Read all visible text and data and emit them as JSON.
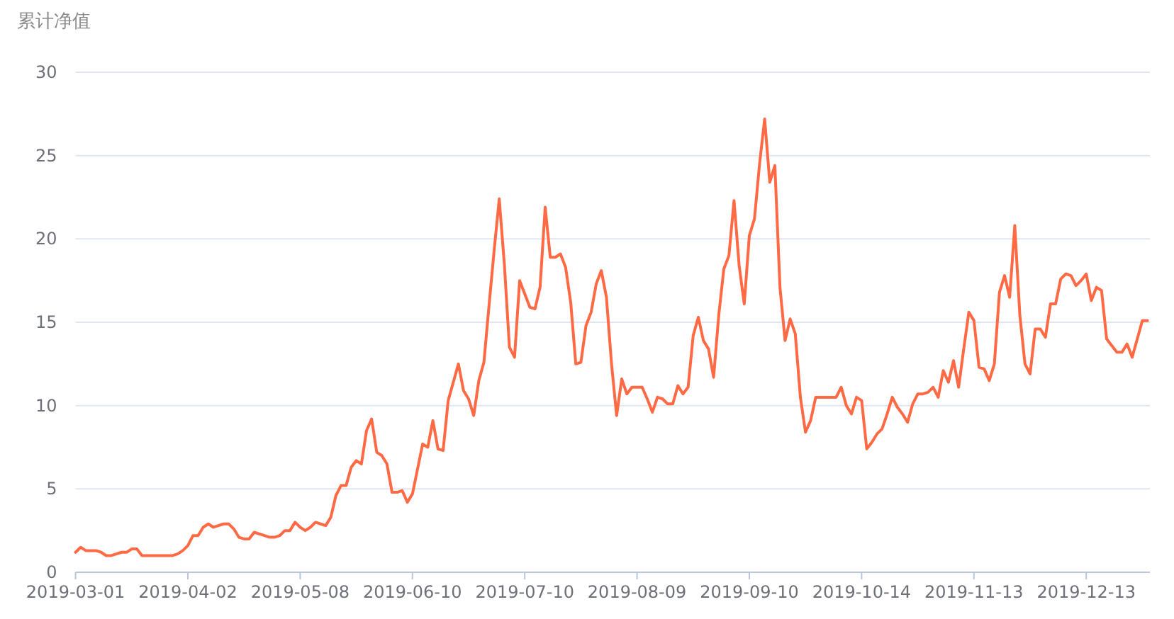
{
  "chart_data": {
    "type": "line",
    "ylabel": "累计净值",
    "categories": [
      "2019-03-01",
      null,
      null,
      null,
      null,
      null,
      null,
      null,
      null,
      null,
      null,
      null,
      null,
      null,
      null,
      null,
      null,
      null,
      null,
      null,
      null,
      null,
      "2019-04-02",
      null,
      null,
      null,
      null,
      null,
      null,
      null,
      null,
      null,
      null,
      null,
      null,
      null,
      null,
      null,
      null,
      null,
      null,
      null,
      null,
      null,
      "2019-05-08",
      null,
      null,
      null,
      null,
      null,
      null,
      null,
      null,
      null,
      null,
      null,
      null,
      null,
      null,
      null,
      null,
      null,
      null,
      null,
      null,
      null,
      "2019-06-10",
      null,
      null,
      null,
      null,
      null,
      null,
      null,
      null,
      null,
      null,
      null,
      null,
      null,
      null,
      null,
      null,
      null,
      null,
      null,
      null,
      null,
      "2019-07-10",
      null,
      null,
      null,
      null,
      null,
      null,
      null,
      null,
      null,
      null,
      null,
      null,
      null,
      null,
      null,
      null,
      null,
      null,
      null,
      null,
      null,
      "2019-08-09",
      null,
      null,
      null,
      null,
      null,
      null,
      null,
      null,
      null,
      null,
      null,
      null,
      null,
      null,
      null,
      null,
      null,
      null,
      null,
      null,
      null,
      "2019-09-10",
      null,
      null,
      null,
      null,
      null,
      null,
      null,
      null,
      null,
      null,
      null,
      null,
      null,
      null,
      null,
      null,
      null,
      null,
      null,
      null,
      null,
      "2019-10-14",
      null,
      null,
      null,
      null,
      null,
      null,
      null,
      null,
      null,
      null,
      null,
      null,
      null,
      null,
      null,
      null,
      null,
      null,
      null,
      null,
      null,
      "2019-11-13",
      null,
      null,
      null,
      null,
      null,
      null,
      null,
      null,
      null,
      null,
      null,
      null,
      null,
      null,
      null,
      null,
      null,
      null,
      null,
      null,
      null,
      "2019-12-13",
      null,
      null,
      null,
      null,
      null,
      null,
      null,
      null,
      null,
      null,
      null,
      null
    ],
    "series": [
      {
        "color": "#ff6a45",
        "values": [
          1.2,
          1.5,
          1.3,
          1.3,
          1.3,
          1.2,
          1.0,
          1.0,
          1.1,
          1.2,
          1.2,
          1.4,
          1.4,
          1.0,
          1.0,
          1.0,
          1.0,
          1.0,
          1.0,
          1.0,
          1.1,
          1.3,
          1.6,
          2.2,
          2.2,
          2.7,
          2.9,
          2.7,
          2.8,
          2.9,
          2.9,
          2.6,
          2.1,
          2.0,
          2.0,
          2.4,
          2.3,
          2.2,
          2.1,
          2.1,
          2.2,
          2.5,
          2.5,
          3.0,
          2.7,
          2.5,
          2.7,
          3.0,
          2.9,
          2.8,
          3.3,
          4.6,
          5.2,
          5.2,
          6.3,
          6.7,
          6.5,
          8.5,
          9.2,
          7.2,
          7.0,
          6.5,
          4.8,
          4.8,
          4.9,
          4.2,
          4.7,
          6.2,
          7.7,
          7.5,
          9.1,
          7.4,
          7.3,
          10.3,
          11.4,
          12.5,
          10.9,
          10.4,
          9.4,
          11.5,
          12.6,
          16.0,
          19.3,
          22.4,
          18.5,
          13.5,
          12.9,
          17.5,
          16.7,
          15.9,
          15.8,
          17.1,
          21.9,
          18.9,
          18.9,
          19.1,
          18.3,
          16.2,
          12.5,
          12.6,
          14.8,
          15.6,
          17.3,
          18.1,
          16.5,
          12.5,
          9.4,
          11.6,
          10.7,
          11.1,
          11.1,
          11.1,
          10.4,
          9.6,
          10.5,
          10.4,
          10.1,
          10.1,
          11.2,
          10.7,
          11.1,
          14.2,
          15.3,
          13.9,
          13.4,
          11.7,
          15.4,
          18.2,
          19.0,
          22.3,
          18.4,
          16.1,
          20.2,
          21.2,
          24.5,
          27.2,
          23.4,
          24.4,
          17.1,
          13.9,
          15.2,
          14.3,
          10.5,
          8.4,
          9.1,
          10.5,
          10.5,
          10.5,
          10.5,
          10.5,
          11.1,
          10.0,
          9.5,
          10.5,
          10.3,
          7.4,
          7.8,
          8.3,
          8.6,
          9.5,
          10.5,
          9.9,
          9.5,
          9.0,
          10.1,
          10.7,
          10.7,
          10.8,
          11.1,
          10.5,
          12.1,
          11.4,
          12.7,
          11.1,
          13.4,
          15.6,
          15.1,
          12.3,
          12.2,
          11.5,
          12.5,
          16.8,
          17.8,
          16.5,
          20.8,
          15.4,
          12.5,
          11.9,
          14.6,
          14.6,
          14.1,
          16.1,
          16.1,
          17.6,
          17.9,
          17.8,
          17.2,
          17.5,
          17.9,
          16.3,
          17.1,
          16.9,
          14.0,
          13.6,
          13.2,
          13.2,
          13.7,
          12.9,
          14.0,
          15.1,
          15.1
        ]
      }
    ],
    "ylim": [
      0,
      30
    ],
    "yticks": [
      0,
      5,
      10,
      15,
      20,
      25,
      30
    ],
    "grid": "y"
  }
}
